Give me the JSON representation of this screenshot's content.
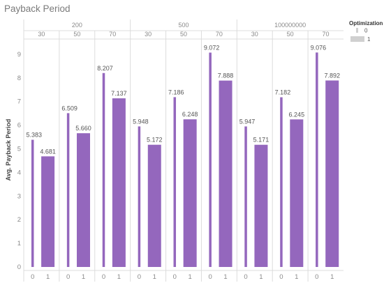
{
  "chart_data": {
    "type": "bar",
    "title": "Payback Period",
    "ylabel": "Avg. Payback Period",
    "ylim": [
      0,
      9.6
    ],
    "yticks": [
      0,
      1,
      2,
      3,
      4,
      5,
      6,
      7,
      8,
      9
    ],
    "outer_groups": [
      {
        "label": "200",
        "inner": [
          {
            "label": "30",
            "bars": [
              {
                "x": "0",
                "value": 5.383,
                "text": "5.383"
              },
              {
                "x": "1",
                "value": 4.681,
                "text": "4.681"
              }
            ]
          },
          {
            "label": "50",
            "bars": [
              {
                "x": "0",
                "value": 6.509,
                "text": "6.509"
              },
              {
                "x": "1",
                "value": 5.66,
                "text": "5.660"
              }
            ]
          },
          {
            "label": "70",
            "bars": [
              {
                "x": "0",
                "value": 8.207,
                "text": "8.207"
              },
              {
                "x": "1",
                "value": 7.137,
                "text": "7.137"
              }
            ]
          }
        ]
      },
      {
        "label": "500",
        "inner": [
          {
            "label": "30",
            "bars": [
              {
                "x": "0",
                "value": 5.948,
                "text": "5.948"
              },
              {
                "x": "1",
                "value": 5.172,
                "text": "5.172"
              }
            ]
          },
          {
            "label": "50",
            "bars": [
              {
                "x": "0",
                "value": 7.186,
                "text": "7.186"
              },
              {
                "x": "1",
                "value": 6.248,
                "text": "6.248"
              }
            ]
          },
          {
            "label": "70",
            "bars": [
              {
                "x": "0",
                "value": 9.072,
                "text": "9.072"
              },
              {
                "x": "1",
                "value": 7.888,
                "text": "7.888"
              }
            ]
          }
        ]
      },
      {
        "label": "100000000",
        "inner": [
          {
            "label": "30",
            "bars": [
              {
                "x": "0",
                "value": 5.947,
                "text": "5.947"
              },
              {
                "x": "1",
                "value": 5.171,
                "text": "5.171"
              }
            ]
          },
          {
            "label": "50",
            "bars": [
              {
                "x": "0",
                "value": 7.182,
                "text": "7.182"
              },
              {
                "x": "1",
                "value": 6.245,
                "text": "6.245"
              }
            ]
          },
          {
            "label": "70",
            "bars": [
              {
                "x": "0",
                "value": 9.076,
                "text": "9.076"
              },
              {
                "x": "1",
                "value": 7.892,
                "text": "7.892"
              }
            ]
          }
        ]
      }
    ],
    "legend": {
      "title": "Optimization",
      "position": "top-right",
      "entries": [
        "0",
        "1"
      ],
      "encoding": "size"
    },
    "bar_color": "#9467bd",
    "grid": false
  }
}
